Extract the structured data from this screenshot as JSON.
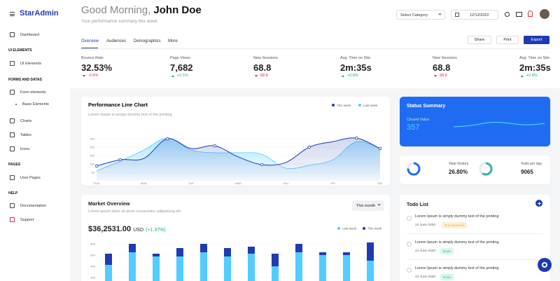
{
  "sidebar": {
    "logo": "StarAdmin",
    "items": [
      {
        "type": "link",
        "label": "Dashboard"
      },
      {
        "type": "heading",
        "label": "UI ELEMENTS"
      },
      {
        "type": "link",
        "label": "UI Elements"
      },
      {
        "type": "heading",
        "label": "FORMS AND DATAS"
      },
      {
        "type": "link",
        "label": "Form elements"
      },
      {
        "type": "sub",
        "label": "Basic Elements"
      },
      {
        "type": "link",
        "label": "Charts"
      },
      {
        "type": "link",
        "label": "Tables"
      },
      {
        "type": "link",
        "label": "Icons"
      },
      {
        "type": "heading",
        "label": "PAGES"
      },
      {
        "type": "link",
        "label": "User Pages"
      },
      {
        "type": "heading",
        "label": "HELP"
      },
      {
        "type": "link",
        "label": "Documentation"
      },
      {
        "type": "link",
        "label": "Support"
      }
    ]
  },
  "header": {
    "greeting": "Good Morning,",
    "name": "John Doe",
    "subtitle": "Your performance summary this week",
    "category_select": "Select Category",
    "date": "12/12/2022"
  },
  "tabs": [
    "Overview",
    "Audiences",
    "Demographics",
    "More"
  ],
  "buttons": [
    "Share",
    "Print",
    "Export"
  ],
  "stats": [
    {
      "label": "Bounce Rate",
      "value": "32.53%",
      "change": "-0.5%",
      "color": "#e0245e"
    },
    {
      "label": "Page Views",
      "value": "7,682",
      "change": "+0.1%",
      "color": "#13b76c"
    },
    {
      "label": "New Sessions",
      "value": "68.8",
      "change": "68.8",
      "color": "#e0245e"
    },
    {
      "label": "Avg. Time on Site",
      "value": "2m:35s",
      "change": "+0.8%",
      "color": "#13b76c"
    },
    {
      "label": "New Sessions",
      "value": "68.8",
      "change": "68.8",
      "color": "#e0245e"
    },
    {
      "label": "Avg. Time on Site",
      "value": "2m:35s",
      "change": "+0.8%",
      "color": "#13b76c"
    }
  ],
  "performance_chart": {
    "type": "line",
    "title": "Performance Line Chart",
    "subtitle": "Lorem Ipsum is simply dummy text of the printing",
    "categories": [
      "SUN",
      null,
      "MON",
      null,
      "TUE",
      null,
      "WED",
      null,
      "THU",
      null,
      "FRI",
      null,
      "SAT"
    ],
    "series": [
      {
        "name": "This week",
        "color": "#1f3bb3",
        "values": [
          88,
          125,
          133,
          250,
          192,
          208,
          142,
          96,
          108,
          200,
          233,
          254,
          192
        ]
      },
      {
        "name": "Last week",
        "color": "#52cdff",
        "values": [
          58,
          117,
          183,
          254,
          183,
          167,
          167,
          158,
          75,
          92,
          125,
          233,
          192
        ]
      }
    ],
    "ylim": [
      0,
      300
    ],
    "yticks": [
      50,
      100,
      150,
      200,
      250
    ]
  },
  "status_summary": {
    "title": "Status Summary",
    "label": "Closed Value",
    "value": "357"
  },
  "visitors": [
    {
      "label": "Total Visitors",
      "value": "26.80%"
    },
    {
      "label": "Visits per day",
      "value": "9065"
    }
  ],
  "market_overview": {
    "type": "bar",
    "title": "Market Overview",
    "subtitle": "Lorem ipsum dolor sit amet consectetur adipisicing elit",
    "period": "This month",
    "amount": "$36,2531.00",
    "currency": "USD",
    "change": "(+1.37%)",
    "series": [
      {
        "name": "Last week",
        "color": "#52cdff",
        "values": [
          425,
          650,
          575,
          575,
          650,
          575,
          625,
          400,
          650,
          600,
          600,
          500
        ]
      },
      {
        "name": "This week",
        "color": "#1f3bb3",
        "values": [
          200,
          150,
          50,
          150,
          150,
          150,
          125,
          225,
          150,
          50,
          50,
          325
        ]
      }
    ],
    "ylim": [
      0,
      800
    ],
    "yticks": [
      200,
      400,
      600,
      800
    ]
  },
  "todo": {
    "title": "Todo List",
    "items": [
      {
        "text": "Lorem Ipsum is simply dummy text of the printing",
        "date": "24 June 2020",
        "badge": "Due tomorrow"
      },
      {
        "text": "Lorem Ipsum is simply dummy text of the printing",
        "date": "24 June 2020",
        "badge": "Done"
      },
      {
        "text": "Lorem Ipsum is simply dummy text of the printing",
        "date": "24 June 2020",
        "badge": "Done"
      }
    ]
  }
}
